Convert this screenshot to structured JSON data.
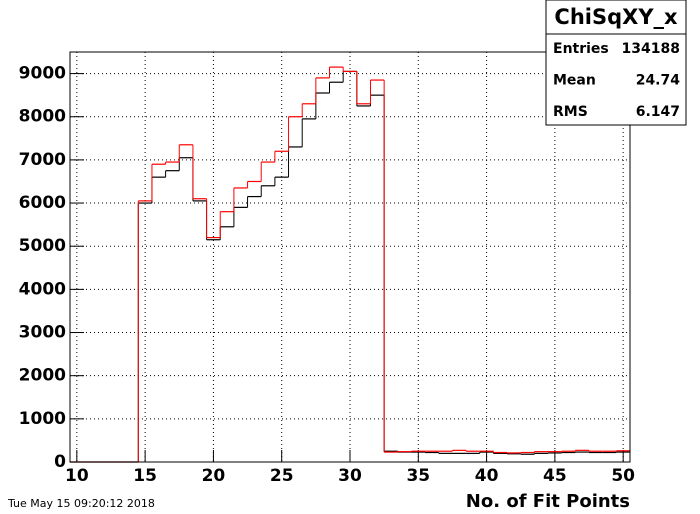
{
  "chart_data": {
    "type": "histogram",
    "x_label": "No. of Fit Points",
    "timestamp": "Tue May 15 09:20:12 2018",
    "bins": [
      9.5,
      10.5,
      11.5,
      12.5,
      13.5,
      14.5,
      15.5,
      16.5,
      17.5,
      18.5,
      19.5,
      20.5,
      21.5,
      22.5,
      23.5,
      24.5,
      25.5,
      26.5,
      27.5,
      28.5,
      29.5,
      30.5,
      31.5,
      32.5,
      33.5,
      34.5,
      35.5,
      36.5,
      37.5,
      38.5,
      39.5,
      40.5,
      41.5,
      42.5,
      43.5,
      44.5,
      45.5,
      46.5,
      47.5,
      48.5,
      49.5,
      50.5
    ],
    "series": [
      {
        "color": "#000000",
        "values": [
          0,
          0,
          0,
          0,
          0,
          6000,
          6600,
          6750,
          7050,
          6050,
          5150,
          5450,
          5900,
          6150,
          6400,
          6600,
          7300,
          7950,
          8550,
          8800,
          9050,
          8250,
          8500,
          250,
          230,
          230,
          220,
          200,
          200,
          200,
          230,
          200,
          190,
          180,
          200,
          210,
          220,
          230,
          220,
          220,
          230
        ]
      },
      {
        "color": "#ff0000",
        "values": [
          0,
          0,
          0,
          0,
          0,
          6050,
          6900,
          6950,
          7350,
          6100,
          5200,
          5800,
          6350,
          6500,
          6950,
          7200,
          8000,
          8300,
          8900,
          9150,
          9050,
          8300,
          8850,
          230,
          240,
          250,
          250,
          250,
          270,
          250,
          250,
          220,
          210,
          220,
          240,
          240,
          250,
          270,
          250,
          250,
          260
        ]
      }
    ],
    "xlim": [
      9.5,
      50.5
    ],
    "xticks": [
      10,
      15,
      20,
      25,
      30,
      35,
      40,
      45,
      50
    ],
    "ylim": [
      0,
      9500
    ],
    "yticks": [
      0,
      1000,
      2000,
      3000,
      4000,
      5000,
      6000,
      7000,
      8000,
      9000
    ],
    "grid": true,
    "stats": {
      "title": "ChiSqXY_x",
      "rows": [
        {
          "label": "Entries",
          "value": 134188
        },
        {
          "label": "Mean",
          "value": 24.74
        },
        {
          "label": "RMS",
          "value": 6.147
        }
      ]
    }
  }
}
